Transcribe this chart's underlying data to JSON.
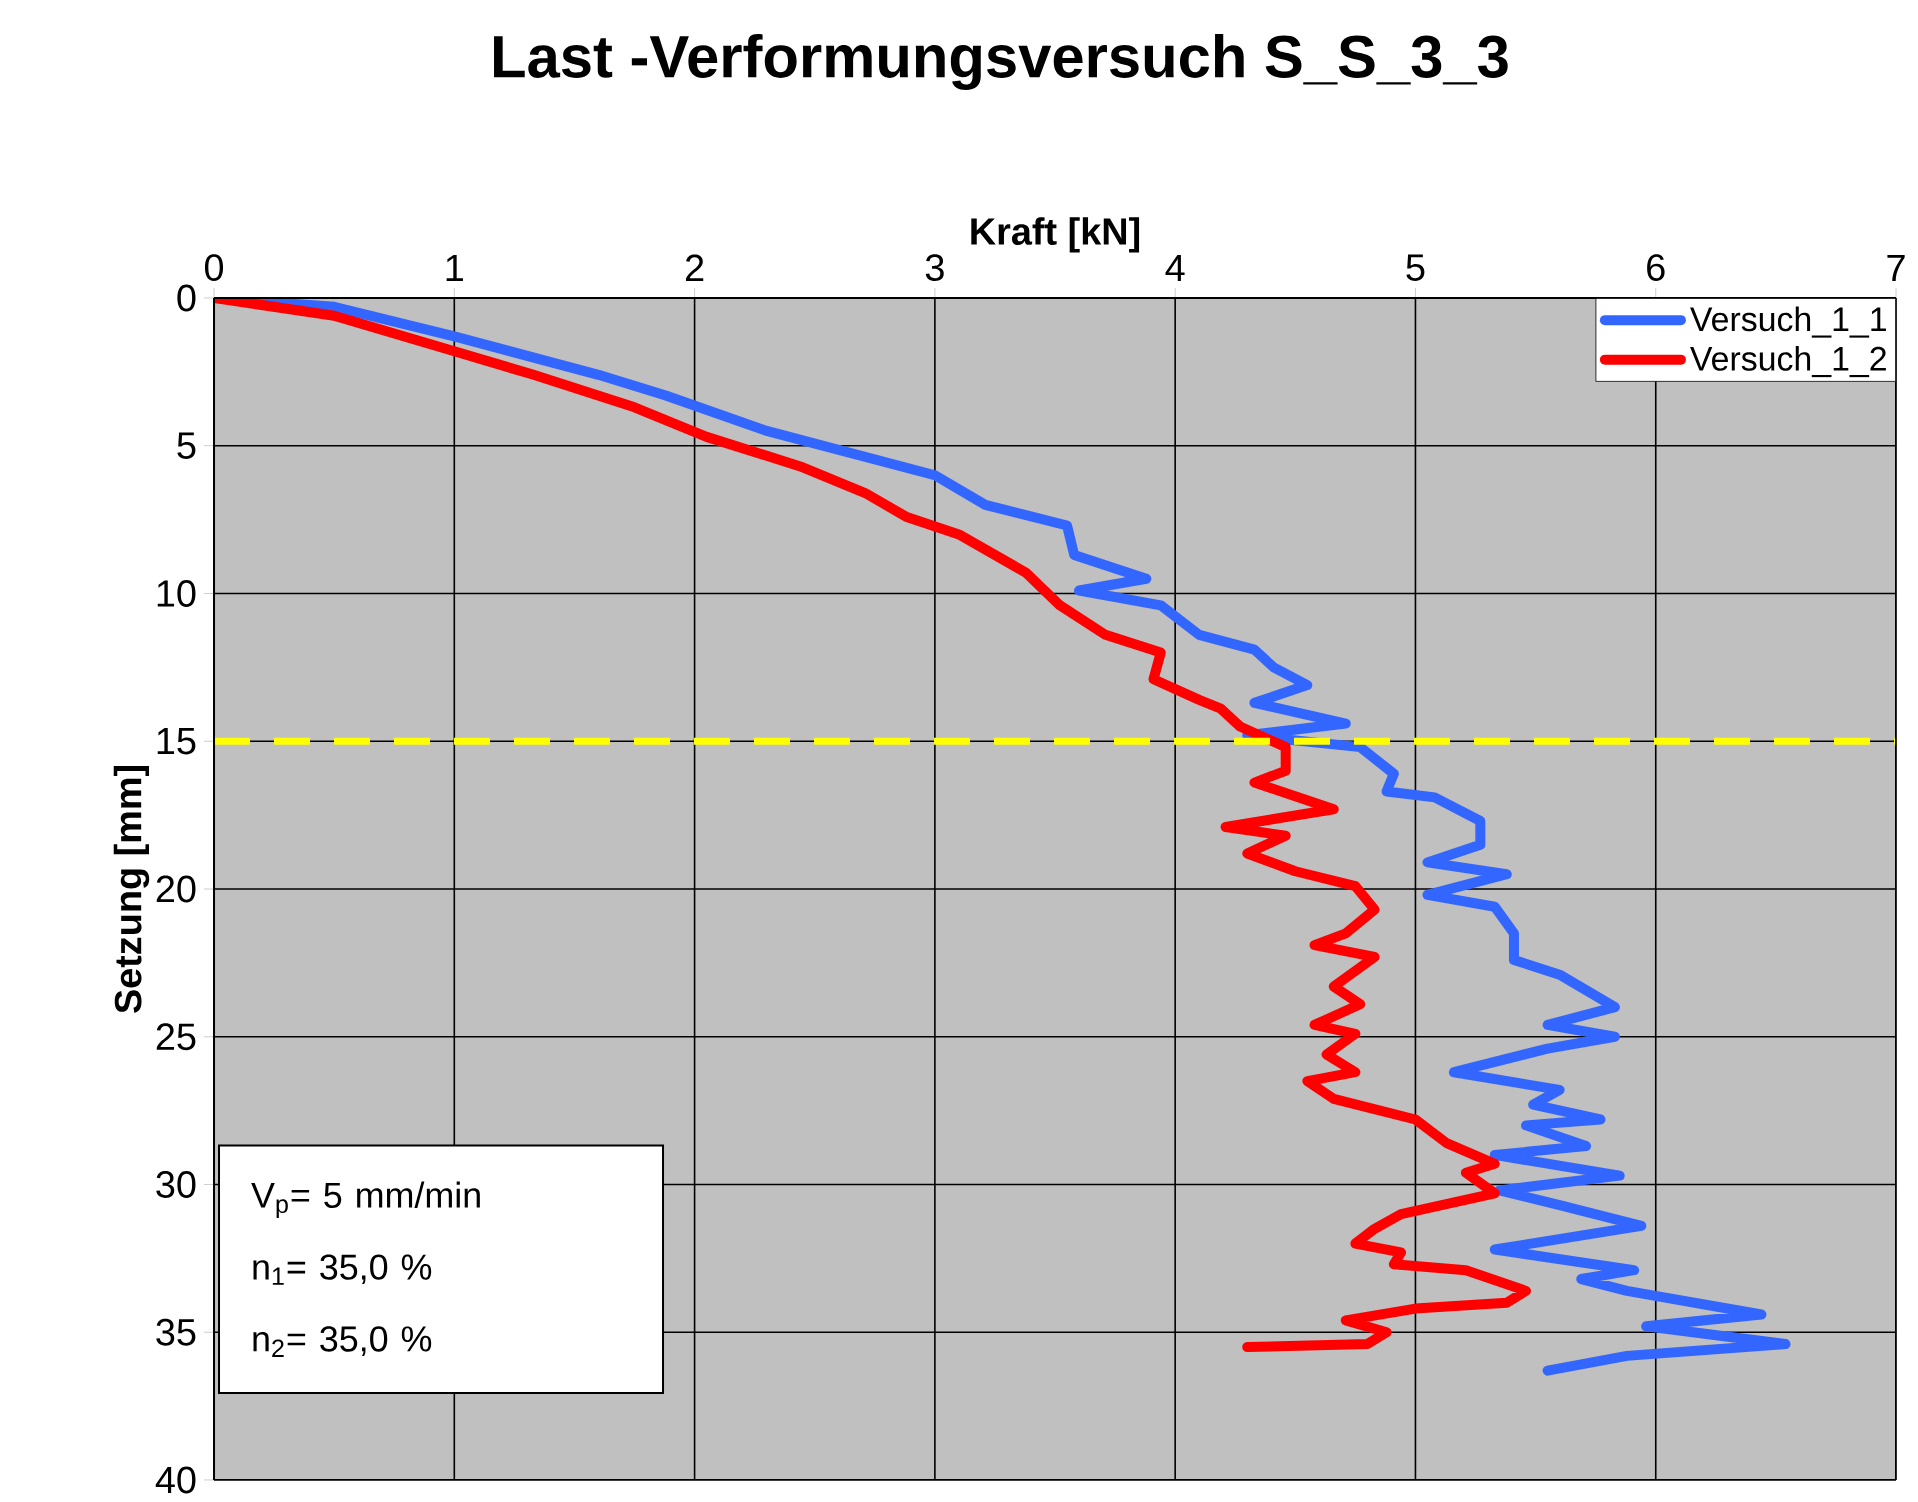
{
  "chart_data": {
    "type": "line",
    "title": "Last -Verformungsversuch S_S_3_3",
    "xlabel": "Kraft [kN]",
    "ylabel": "Setzung [mm]",
    "xlim": [
      0,
      7
    ],
    "xticks": [
      0,
      1,
      2,
      3,
      4,
      5,
      6,
      7
    ],
    "ylim": [
      40,
      0
    ],
    "yticks": [
      0,
      5,
      10,
      15,
      20,
      25,
      30,
      35,
      40
    ],
    "grid": true,
    "legend": "top right",
    "line_style": "solid",
    "marker": "none",
    "series": [
      {
        "name": "Versuch_1_1",
        "color": "#3366ff",
        "x": [
          0,
          0.5,
          1.0,
          1.6,
          1.88,
          2.3,
          3.0,
          3.21,
          3.55,
          3.58,
          3.88,
          3.6,
          3.94,
          4.1,
          4.33,
          4.41,
          4.55,
          4.33,
          4.71,
          4.3,
          4.77,
          4.91,
          4.88,
          5.08,
          5.27,
          5.27,
          5.05,
          5.38,
          5.05,
          5.33,
          5.41,
          5.41,
          5.6,
          5.83,
          5.55,
          5.83,
          5.55,
          5.16,
          5.6,
          5.49,
          5.77,
          5.46,
          5.71,
          5.33,
          5.85,
          5.35,
          5.6,
          5.94,
          5.33,
          5.91,
          5.69,
          5.88,
          6.44,
          5.96,
          6.54,
          5.88,
          5.55
        ],
        "values": [
          0,
          0.3,
          1.3,
          2.6,
          3.3,
          4.5,
          6.0,
          7.0,
          7.7,
          8.7,
          9.5,
          9.9,
          10.4,
          11.4,
          11.9,
          12.5,
          13.1,
          13.7,
          14.4,
          14.8,
          15.2,
          16.1,
          16.7,
          16.9,
          17.7,
          18.5,
          19.1,
          19.5,
          20.2,
          20.6,
          21.5,
          22.4,
          22.9,
          24.0,
          24.6,
          25.0,
          25.4,
          26.2,
          26.8,
          27.3,
          27.8,
          28.0,
          28.7,
          29.0,
          29.7,
          30.2,
          30.7,
          31.4,
          32.2,
          32.9,
          33.2,
          33.6,
          34.4,
          34.8,
          35.4,
          35.8,
          36.3
        ]
      },
      {
        "name": "Versuch_1_2",
        "color": "#ff0000",
        "x": [
          0,
          0.5,
          1.0,
          1.33,
          1.75,
          2.05,
          2.44,
          2.71,
          2.88,
          3.1,
          3.38,
          3.52,
          3.71,
          3.94,
          3.91,
          4.1,
          4.19,
          4.27,
          4.46,
          4.46,
          4.33,
          4.66,
          4.21,
          4.46,
          4.3,
          4.5,
          4.75,
          4.83,
          4.71,
          4.58,
          4.83,
          4.66,
          4.77,
          4.58,
          4.75,
          4.63,
          4.75,
          4.55,
          4.66,
          5.0,
          5.13,
          5.33,
          5.21,
          5.33,
          4.94,
          4.83,
          4.75,
          4.94,
          4.91,
          5.21,
          5.46,
          5.38,
          5.0,
          4.71,
          4.88,
          4.8,
          4.3
        ],
        "values": [
          0,
          0.6,
          1.8,
          2.6,
          3.7,
          4.7,
          5.7,
          6.6,
          7.4,
          8.0,
          9.3,
          10.4,
          11.4,
          12.0,
          12.9,
          13.6,
          13.9,
          14.5,
          15.2,
          16.0,
          16.4,
          17.3,
          17.9,
          18.2,
          18.8,
          19.4,
          19.9,
          20.7,
          21.5,
          21.9,
          22.3,
          23.3,
          23.9,
          24.6,
          24.9,
          25.6,
          26.2,
          26.5,
          27.1,
          27.8,
          28.6,
          29.3,
          29.6,
          30.3,
          31.0,
          31.5,
          32.0,
          32.3,
          32.7,
          32.9,
          33.6,
          34.0,
          34.2,
          34.6,
          35.0,
          35.4,
          35.5
        ]
      }
    ],
    "ref_lines": [
      {
        "axis": "y",
        "value": 15,
        "color": "#ffff00",
        "line_style": "dashed"
      }
    ],
    "annotations": [
      "V$_{p}$= 5 mm/min",
      "n$_{1}$= 35,0 %",
      "n$_{2}$= 35,0 %"
    ]
  }
}
